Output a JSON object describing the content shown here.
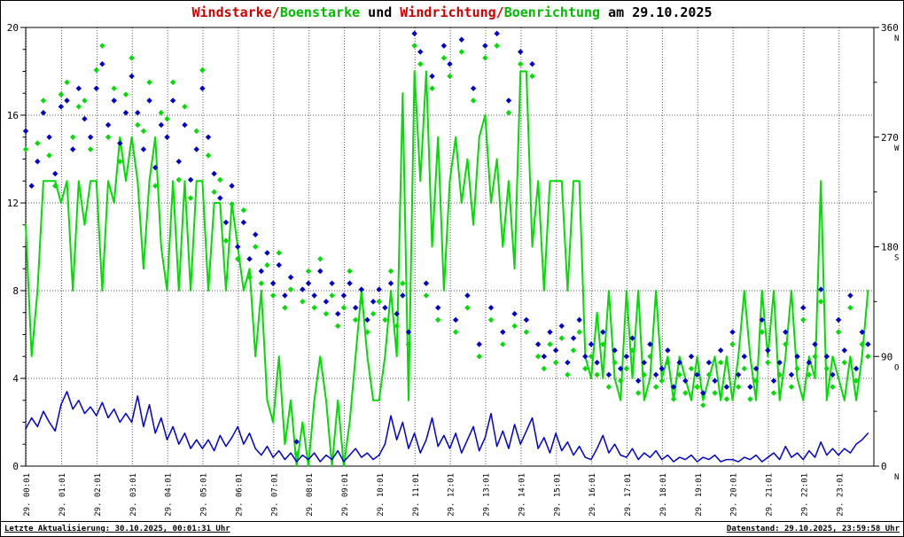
{
  "title": {
    "segments": [
      {
        "text": "Windstarke/",
        "color": "#cc0000"
      },
      {
        "text": "Boenstarke",
        "color": "#00bb00"
      },
      {
        "text": " und ",
        "color": "#000000"
      },
      {
        "text": "Windrichtung/",
        "color": "#cc0000"
      },
      {
        "text": "Boenrichtung",
        "color": "#00bb00"
      },
      {
        "text": " am 29.10.2025",
        "color": "#000000"
      }
    ]
  },
  "footer": {
    "left": "Letzte Aktualisierung: 30.10.2025, 00:01:31 Uhr",
    "right": "Datenstand: 29.10.2025, 23:59:58 Uhr"
  },
  "chart_data": {
    "type": "line",
    "title": "Windstarke/Boenstarke und Windrichtung/Boenrichtung am 29.10.2025",
    "grid": true,
    "legend": "none",
    "time_step_minutes": 10,
    "x_categories": [
      "29. 00:01",
      "29. 01:01",
      "29. 02:01",
      "29. 03:01",
      "29. 04:01",
      "29. 05:01",
      "29. 06:01",
      "29. 07:01",
      "29. 08:01",
      "29. 09:01",
      "29. 10:01",
      "29. 11:01",
      "29. 12:01",
      "29. 13:01",
      "29. 14:01",
      "29. 15:01",
      "29. 16:01",
      "29. 17:01",
      "29. 18:01",
      "29. 19:01",
      "29. 20:01",
      "29. 21:01",
      "29. 22:01",
      "29. 23:01"
    ],
    "left_axis": {
      "min": 0,
      "max": 20,
      "ticks": [
        0,
        4,
        8,
        12,
        16,
        20
      ],
      "grid_values": [
        4,
        8,
        12,
        16
      ]
    },
    "right_axis": {
      "min": 0,
      "max": 360,
      "ticks": [
        {
          "value": 360,
          "label": "360",
          "letter": "N"
        },
        {
          "value": 270,
          "label": "270",
          "letter": "W"
        },
        {
          "value": 180,
          "label": "180",
          "letter": "S"
        },
        {
          "value": 90,
          "label": "90",
          "letter": "O"
        },
        {
          "value": 0,
          "label": "0",
          "letter": "N"
        }
      ]
    },
    "series": [
      {
        "name": "Boenstaerke",
        "color": "#00dd00",
        "axis": "left",
        "type": "line",
        "width": 2,
        "values": [
          11,
          5,
          8,
          13,
          13,
          13,
          12,
          13,
          8,
          13,
          11,
          13,
          13,
          8,
          13,
          12,
          15,
          13,
          15,
          13,
          9,
          13,
          15,
          10,
          8,
          13,
          8,
          13,
          8,
          13,
          13,
          8,
          12,
          12,
          8,
          12,
          10,
          8,
          9,
          5,
          8,
          3,
          2,
          5,
          1,
          3,
          0,
          2,
          0,
          3,
          5,
          3,
          0,
          3,
          0,
          2,
          5,
          8,
          5,
          3,
          3,
          5,
          8,
          5,
          17,
          3,
          18,
          13,
          18,
          10,
          15,
          8,
          13,
          15,
          12,
          14,
          11,
          15,
          16,
          12,
          14,
          10,
          13,
          9,
          18,
          18,
          10,
          13,
          8,
          13,
          13,
          13,
          8,
          13,
          13,
          5,
          4,
          7,
          4,
          8,
          4,
          3,
          8,
          4,
          8,
          3,
          4,
          8,
          4,
          5,
          3,
          5,
          4,
          3,
          5,
          3,
          4,
          5,
          3,
          5,
          3,
          5,
          8,
          5,
          3,
          8,
          5,
          8,
          3,
          5,
          8,
          4,
          3,
          5,
          4,
          13,
          3,
          5,
          4,
          3,
          5,
          3,
          5,
          8
        ]
      },
      {
        "name": "Windstaerke",
        "color": "#0000cc",
        "axis": "left",
        "type": "line",
        "width": 1.5,
        "values": [
          1.7,
          2.2,
          1.8,
          2.5,
          2.0,
          1.6,
          2.8,
          3.4,
          2.6,
          3.0,
          2.4,
          2.7,
          2.3,
          2.9,
          2.2,
          2.6,
          2.0,
          2.4,
          2.0,
          3.2,
          1.8,
          2.8,
          1.5,
          2.2,
          1.2,
          1.8,
          1.0,
          1.5,
          0.8,
          1.2,
          0.8,
          1.2,
          0.7,
          1.4,
          0.9,
          1.3,
          1.8,
          1.0,
          1.5,
          0.8,
          0.5,
          0.9,
          0.4,
          0.7,
          0.3,
          0.6,
          0.2,
          0.5,
          0.3,
          0.6,
          0.2,
          0.5,
          0.3,
          0.7,
          0.2,
          0.5,
          0.8,
          0.4,
          0.6,
          0.3,
          0.5,
          1.0,
          2.3,
          1.2,
          2.0,
          0.8,
          1.5,
          0.6,
          1.2,
          2.2,
          0.9,
          1.4,
          0.8,
          1.5,
          0.6,
          1.2,
          1.8,
          0.7,
          1.3,
          2.4,
          0.9,
          1.6,
          0.8,
          1.9,
          1.0,
          1.6,
          2.2,
          0.8,
          1.3,
          0.6,
          1.5,
          0.7,
          1.1,
          0.5,
          0.9,
          0.4,
          0.3,
          0.8,
          1.4,
          0.6,
          1.0,
          0.5,
          0.4,
          0.8,
          0.3,
          0.6,
          0.4,
          0.7,
          0.3,
          0.5,
          0.2,
          0.4,
          0.3,
          0.5,
          0.2,
          0.4,
          0.3,
          0.5,
          0.2,
          0.3,
          0.3,
          0.2,
          0.4,
          0.3,
          0.5,
          0.2,
          0.4,
          0.6,
          0.3,
          0.9,
          0.4,
          0.6,
          0.3,
          0.7,
          0.4,
          1.1,
          0.5,
          0.8,
          0.5,
          0.8,
          0.6,
          1.0,
          1.2,
          1.5
        ]
      },
      {
        "name": "Boenrichtung",
        "color": "#00dd00",
        "axis": "right",
        "type": "scatter",
        "values": [
          260,
          null,
          265,
          300,
          255,
          230,
          305,
          315,
          270,
          295,
          300,
          260,
          325,
          345,
          270,
          310,
          250,
          305,
          335,
          280,
          275,
          315,
          230,
          290,
          285,
          315,
          235,
          295,
          220,
          275,
          325,
          255,
          225,
          235,
          185,
          215,
          170,
          210,
          155,
          180,
          150,
          165,
          140,
          175,
          130,
          145,
          10,
          135,
          160,
          130,
          170,
          125,
          140,
          115,
          130,
          160,
          120,
          135,
          110,
          125,
          135,
          120,
          160,
          115,
          150,
          100,
          345,
          330,
          140,
          310,
          120,
          335,
          320,
          110,
          340,
          130,
          300,
          90,
          335,
          120,
          345,
          100,
          290,
          115,
          330,
          110,
          320,
          90,
          80,
          100,
          85,
          105,
          75,
          95,
          110,
          80,
          90,
          75,
          100,
          65,
          85,
          70,
          80,
          95,
          60,
          75,
          90,
          65,
          70,
          85,
          55,
          75,
          60,
          80,
          65,
          50,
          75,
          60,
          85,
          55,
          100,
          65,
          80,
          55,
          70,
          110,
          85,
          60,
          75,
          100,
          65,
          80,
          120,
          75,
          90,
          135,
          80,
          65,
          110,
          85,
          130,
          70,
          100,
          90
        ]
      },
      {
        "name": "Windrichtung",
        "color": "#0000cc",
        "axis": "right",
        "type": "scatter",
        "values": [
          275,
          230,
          250,
          290,
          270,
          240,
          295,
          300,
          260,
          310,
          285,
          270,
          310,
          330,
          280,
          300,
          265,
          290,
          320,
          290,
          260,
          300,
          245,
          280,
          270,
          300,
          250,
          280,
          235,
          260,
          310,
          270,
          240,
          220,
          200,
          230,
          180,
          200,
          170,
          190,
          160,
          175,
          150,
          165,
          140,
          155,
          20,
          145,
          150,
          140,
          160,
          135,
          150,
          125,
          140,
          150,
          130,
          145,
          120,
          135,
          145,
          130,
          150,
          125,
          140,
          110,
          355,
          340,
          150,
          320,
          130,
          345,
          330,
          120,
          350,
          140,
          310,
          100,
          345,
          130,
          355,
          110,
          300,
          125,
          340,
          120,
          330,
          100,
          90,
          110,
          95,
          115,
          85,
          105,
          120,
          90,
          100,
          85,
          110,
          75,
          95,
          80,
          90,
          105,
          70,
          85,
          100,
          75,
          80,
          95,
          65,
          85,
          70,
          90,
          75,
          60,
          85,
          70,
          95,
          65,
          110,
          75,
          90,
          65,
          80,
          120,
          95,
          70,
          85,
          110,
          75,
          90,
          130,
          85,
          100,
          145,
          90,
          75,
          120,
          95,
          140,
          80,
          110,
          100
        ]
      }
    ]
  }
}
